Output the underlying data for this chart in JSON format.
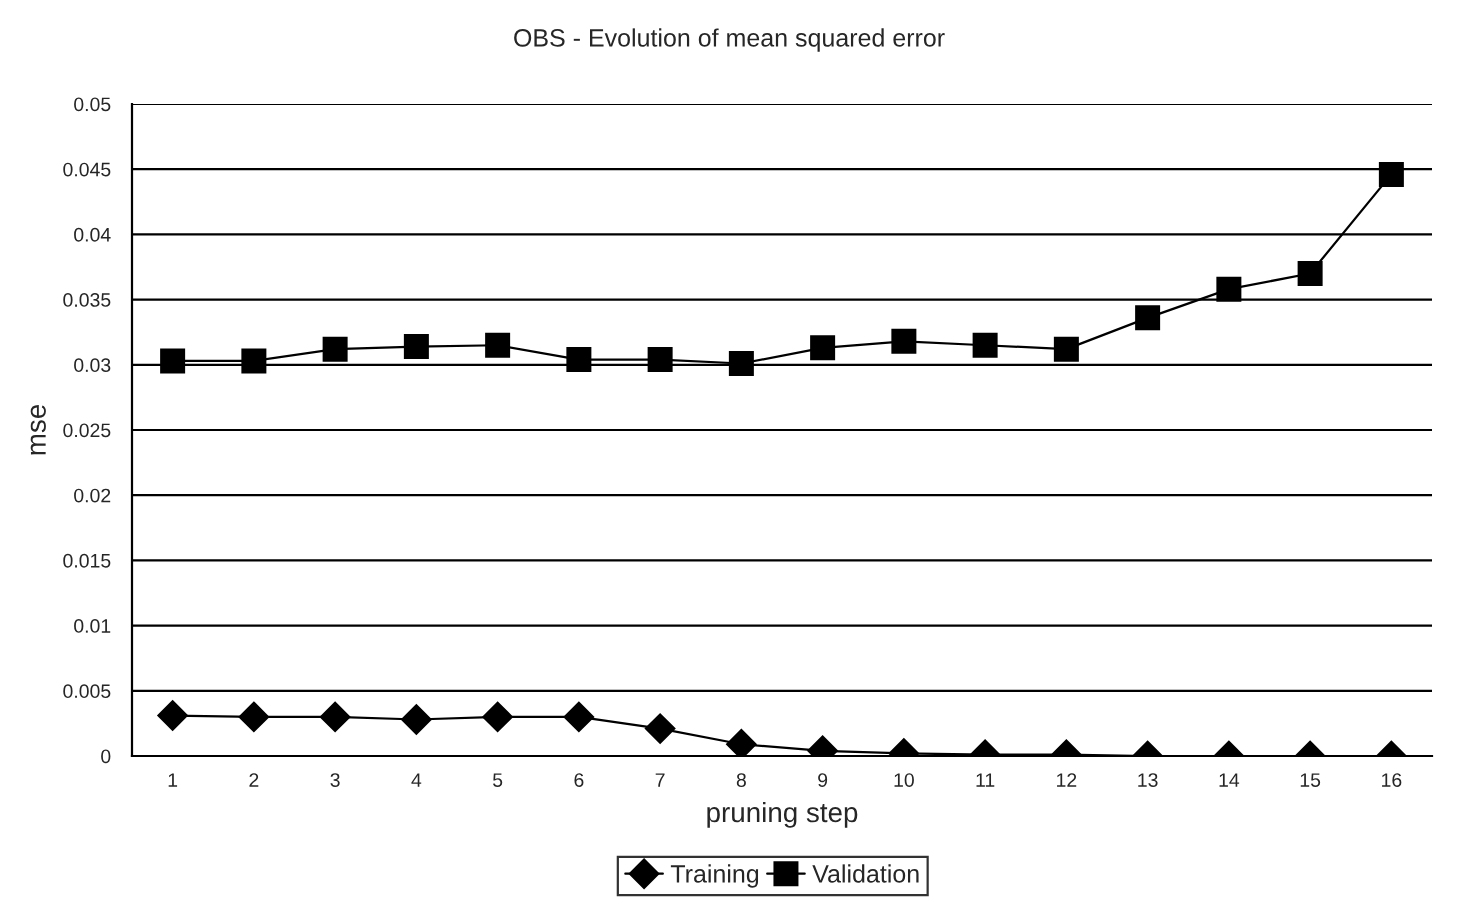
{
  "chart_data": {
    "type": "line",
    "title": "OBS - Evolution of mean squared error",
    "xlabel": "pruning step",
    "ylabel": "mse",
    "categories": [
      "1",
      "2",
      "3",
      "4",
      "5",
      "6",
      "7",
      "8",
      "9",
      "10",
      "11",
      "12",
      "13",
      "14",
      "15",
      "16"
    ],
    "series": [
      {
        "name": "Training",
        "color": "#000000",
        "marker": "diamond",
        "values": [
          0.0031,
          0.003,
          0.003,
          0.0028,
          0.003,
          0.003,
          0.0021,
          0.0009,
          0.0004,
          0.0002,
          0.0001,
          0.0001,
          0,
          0,
          0,
          0
        ]
      },
      {
        "name": "Validation",
        "color": "#000000",
        "marker": "square",
        "values": [
          0.0303,
          0.0303,
          0.0312,
          0.0314,
          0.0315,
          0.0304,
          0.0304,
          0.0301,
          0.0313,
          0.0318,
          0.0315,
          0.0312,
          0.0336,
          0.0358,
          0.037,
          0.0446
        ]
      }
    ],
    "ylim": [
      0,
      0.05
    ],
    "yticks": [
      0,
      0.005,
      0.01,
      0.015,
      0.02,
      0.025,
      0.03,
      0.035,
      0.04,
      0.045,
      0.05
    ],
    "grid": "y",
    "legend": "bottom"
  }
}
